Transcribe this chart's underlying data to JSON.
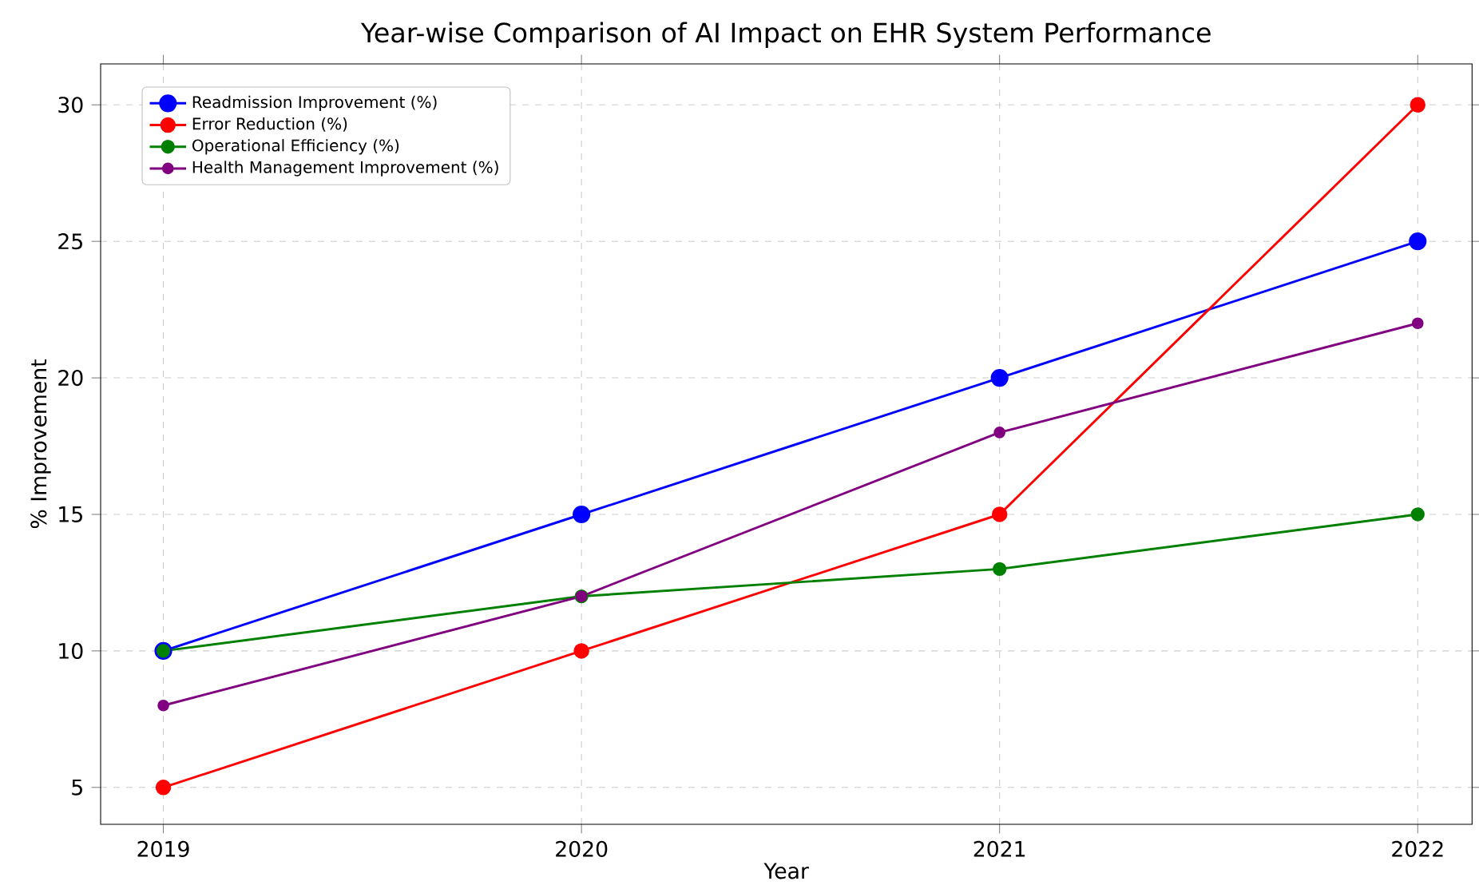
{
  "chart_data": {
    "type": "line",
    "title": "Year-wise Comparison of AI Impact on EHR System Performance",
    "xlabel": "Year",
    "ylabel": "% Improvement",
    "x": [
      2019,
      2020,
      2021,
      2022
    ],
    "series": [
      {
        "name": "Readmission Improvement (%)",
        "color": "#0000ff",
        "values": [
          10,
          15,
          20,
          25
        ]
      },
      {
        "name": "Error Reduction (%)",
        "color": "#ff0000",
        "values": [
          5,
          10,
          15,
          30
        ]
      },
      {
        "name": "Operational Efficiency (%)",
        "color": "#008000",
        "values": [
          10,
          12,
          13,
          15
        ]
      },
      {
        "name": "Health Management Improvement (%)",
        "color": "#800080",
        "values": [
          8,
          12,
          18,
          22
        ]
      }
    ],
    "xlim": [
      2018.85,
      2022.13
    ],
    "ylim": [
      3.65,
      31.5
    ],
    "xticks": [
      2019,
      2020,
      2021,
      2022
    ],
    "yticks": [
      5,
      10,
      15,
      20,
      25,
      30
    ],
    "grid": true,
    "legend": "top left",
    "marker": "circle",
    "line_style": "solid"
  }
}
